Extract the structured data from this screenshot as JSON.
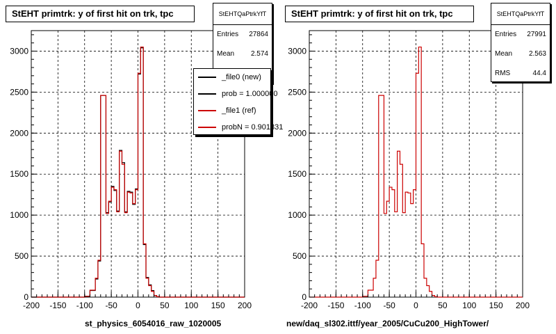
{
  "chart_data": [
    {
      "type": "histogram",
      "title": "StEHT primtrk: y of first hit on trk, tpc",
      "xlabel": "st_physics_6054016_raw_1020005",
      "xlim": [
        -200,
        200
      ],
      "ylim": [
        0,
        3250
      ],
      "x_ticks": [
        -200,
        -150,
        -100,
        -50,
        0,
        50,
        100,
        150,
        200
      ],
      "y_ticks": [
        0,
        500,
        1000,
        1500,
        2000,
        2500,
        3000
      ],
      "grid": true,
      "bin_edges": [
        -200,
        -190,
        -180,
        -170,
        -160,
        -150,
        -140,
        -130,
        -120,
        -110,
        -100,
        -90,
        -80,
        -75,
        -70,
        -65,
        -60,
        -55,
        -50,
        -45,
        -40,
        -35,
        -30,
        -25,
        -20,
        -15,
        -10,
        -5,
        0,
        5,
        10,
        15,
        20,
        25,
        30,
        35,
        40,
        45,
        50,
        55,
        60,
        65,
        70,
        75,
        80,
        85,
        90,
        95,
        100,
        110,
        120,
        130,
        140,
        150,
        160,
        170,
        180,
        190,
        200
      ],
      "series": [
        {
          "name": "_file0 (new)",
          "color": "#000000",
          "values": [
            0,
            0,
            0,
            0,
            0,
            0,
            0,
            0,
            0,
            0,
            10,
            80,
            220,
            440,
            2460,
            2460,
            1030,
            1160,
            1350,
            1300,
            1050,
            1790,
            1640,
            1040,
            1290,
            1280,
            1130,
            1320,
            2720,
            3040,
            640,
            240,
            150,
            80,
            20,
            5,
            0,
            0,
            0,
            0,
            0,
            0,
            0,
            0,
            0,
            0,
            0,
            0,
            0,
            0,
            0,
            0,
            0,
            0,
            0,
            0,
            0,
            0
          ]
        },
        {
          "name": "_file1 (ref)",
          "color": "#cc0000",
          "values": [
            0,
            0,
            0,
            0,
            0,
            0,
            0,
            0,
            0,
            0,
            10,
            85,
            230,
            450,
            2460,
            2460,
            1020,
            1170,
            1340,
            1310,
            1040,
            1780,
            1620,
            1030,
            1280,
            1270,
            1140,
            1310,
            2730,
            3050,
            650,
            230,
            140,
            70,
            20,
            5,
            0,
            0,
            0,
            0,
            0,
            0,
            0,
            0,
            0,
            0,
            0,
            0,
            0,
            0,
            0,
            0,
            0,
            0,
            0,
            0,
            0,
            0
          ]
        }
      ]
    },
    {
      "type": "histogram",
      "title": "StEHT primtrk: y of first hit on trk, tpc",
      "xlabel": "new/daq_sl302.ittf/year_2005/CuCu200_HighTower/",
      "xlim": [
        -200,
        200
      ],
      "ylim": [
        0,
        3250
      ],
      "x_ticks": [
        -200,
        -150,
        -100,
        -50,
        0,
        50,
        100,
        150,
        200
      ],
      "y_ticks": [
        0,
        500,
        1000,
        1500,
        2000,
        2500,
        3000
      ],
      "grid": true,
      "bin_edges": [
        -200,
        -190,
        -180,
        -170,
        -160,
        -150,
        -140,
        -130,
        -120,
        -110,
        -100,
        -90,
        -80,
        -75,
        -70,
        -65,
        -60,
        -55,
        -50,
        -45,
        -40,
        -35,
        -30,
        -25,
        -20,
        -15,
        -10,
        -5,
        0,
        5,
        10,
        15,
        20,
        25,
        30,
        35,
        40,
        45,
        50,
        55,
        60,
        65,
        70,
        75,
        80,
        85,
        90,
        95,
        100,
        110,
        120,
        130,
        140,
        150,
        160,
        170,
        180,
        190,
        200
      ],
      "series": [
        {
          "name": "",
          "color": "#cc0000",
          "values": [
            0,
            0,
            0,
            0,
            0,
            0,
            0,
            0,
            0,
            0,
            10,
            85,
            230,
            450,
            2460,
            2460,
            1020,
            1170,
            1340,
            1310,
            1040,
            1780,
            1620,
            1030,
            1280,
            1270,
            1140,
            1310,
            2730,
            3050,
            650,
            230,
            140,
            70,
            20,
            5,
            0,
            0,
            0,
            0,
            0,
            0,
            0,
            0,
            0,
            0,
            0,
            0,
            0,
            0,
            0,
            0,
            0,
            0,
            0,
            0,
            0,
            0
          ]
        }
      ]
    }
  ],
  "left_panel": {
    "title": "StEHT primtrk: y of first hit on trk, tpc",
    "stats": {
      "name": "StEHTQaPtrkYfT",
      "entries_label": "Entries",
      "entries": "27864",
      "mean_label": "Mean",
      "mean": "2.574"
    },
    "legend": [
      {
        "label": "_file0 (new)",
        "color": "#000000"
      },
      {
        "label": "prob = 1.000000",
        "color": "#000000"
      },
      {
        "label": "_file1 (ref)",
        "color": "#cc0000"
      },
      {
        "label": "probN = 0.901831",
        "color": "#cc0000"
      }
    ],
    "xlabel": "st_physics_6054016_raw_1020005"
  },
  "right_panel": {
    "title": "StEHT primtrk: y of first hit on trk, tpc",
    "stats": {
      "name": "StEHTQaPtrkYfT",
      "entries_label": "Entries",
      "entries": "27991",
      "mean_label": "Mean",
      "mean": "2.563",
      "rms_label": "RMS",
      "rms": "44.4"
    },
    "xlabel": "new/daq_sl302.ittf/year_2005/CuCu200_HighTower/"
  }
}
